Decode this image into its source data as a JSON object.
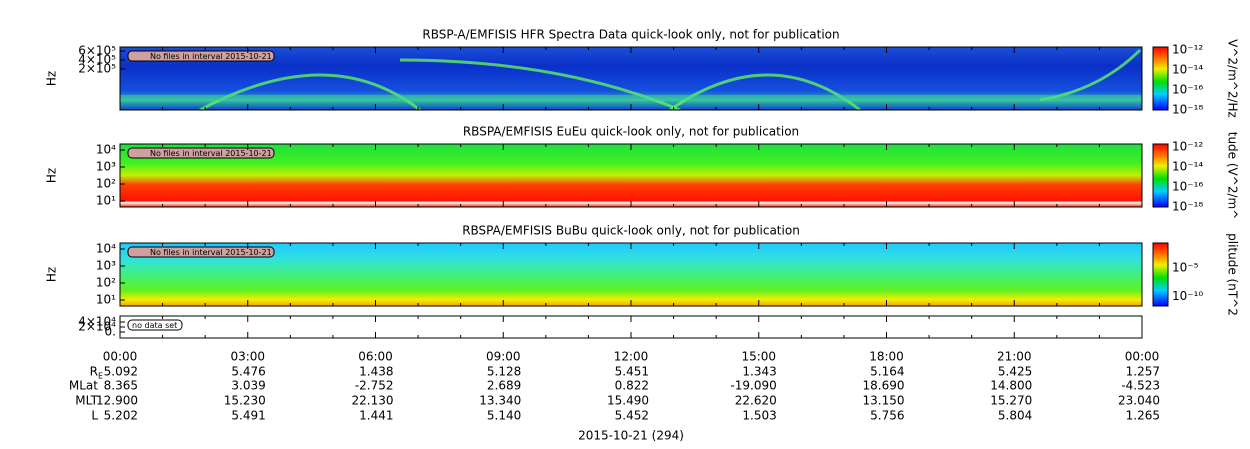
{
  "panels": [
    {
      "title": "RBSP-A/EMFISIS  HFR Spectra Data quick-look only, not for publication",
      "ylabel": "Hz",
      "yticks": [
        "6×10⁵",
        "4×10⁵",
        "2×10⁵"
      ],
      "note": "No files in interval 2015-10-21",
      "colorbar_label": "V^2/m^2/Hz",
      "colorbar_ticks": [
        "10⁻¹²",
        "10⁻¹⁴",
        "10⁻¹⁶",
        "10⁻¹⁸"
      ]
    },
    {
      "title": "RBSPA/EMFISIS  EuEu quick-look only, not for publication",
      "ylabel": "Hz",
      "yticks": [
        "10⁴",
        "10³",
        "10²",
        "10¹"
      ],
      "note": "No files in interval 2015-10-21",
      "colorbar_label": "tude (V^2/m^",
      "colorbar_ticks": [
        "10⁻¹²",
        "10⁻¹⁴",
        "10⁻¹⁶",
        "10⁻¹⁸"
      ]
    },
    {
      "title": "RBSPA/EMFISIS  BuBu quick-look only, not for publication",
      "ylabel": "Hz",
      "yticks": [
        "10⁴",
        "10³",
        "10²",
        "10¹"
      ],
      "note": "No files in interval 2015-10-21",
      "colorbar_label": "plitude (nT^2",
      "colorbar_ticks": [
        "10⁻⁵",
        "10⁻¹⁰"
      ]
    },
    {
      "yticks": [
        "4×10⁴",
        "2×10⁴",
        "0."
      ],
      "note": "no data set"
    }
  ],
  "time_labels": [
    "00:00",
    "03:00",
    "06:00",
    "09:00",
    "12:00",
    "15:00",
    "18:00",
    "21:00",
    "00:00"
  ],
  "ephemeris": [
    {
      "label": "R",
      "label_sub": "E",
      "values": [
        "5.092",
        "5.476",
        "1.438",
        "5.128",
        "5.451",
        "1.343",
        "5.164",
        "5.425",
        "1.257"
      ]
    },
    {
      "label": "MLat",
      "values": [
        "8.365",
        "3.039",
        "-2.752",
        "2.689",
        "0.822",
        "-19.090",
        "18.690",
        "14.800",
        "-4.523"
      ]
    },
    {
      "label": "MLT",
      "values": [
        "12.900",
        "15.230",
        "22.130",
        "13.340",
        "15.490",
        "22.620",
        "13.150",
        "15.270",
        "23.040"
      ]
    },
    {
      "label": "L",
      "values": [
        "5.202",
        "5.491",
        "1.441",
        "5.140",
        "5.452",
        "1.503",
        "5.756",
        "5.804",
        "1.265"
      ]
    }
  ],
  "date_label": "2015-10-21 (294)"
}
